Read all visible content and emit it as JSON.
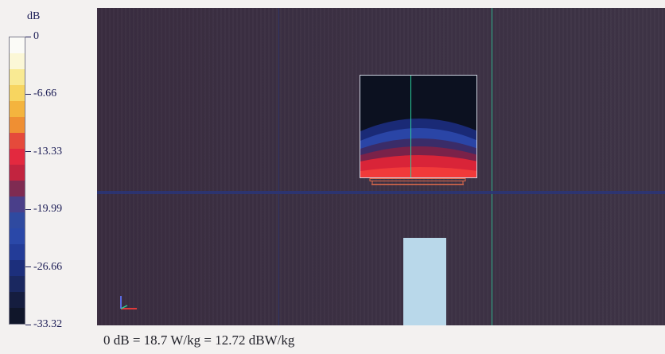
{
  "legend": {
    "unit": "dB",
    "ticks": [
      {
        "label": "0",
        "value": 0
      },
      {
        "label": "-6.66",
        "value": -6.66
      },
      {
        "label": "-13.33",
        "value": -13.33
      },
      {
        "label": "-19.99",
        "value": -19.99
      },
      {
        "label": "-26.66",
        "value": -26.66
      },
      {
        "label": "-33.32",
        "value": -33.32
      }
    ],
    "min": -33.32,
    "max": 0,
    "colors": [
      "#fbfbf7",
      "#fbf7d6",
      "#f9ea93",
      "#f7d560",
      "#f4b43e",
      "#ef8f33",
      "#e54a3b",
      "#e3293f",
      "#c2243f",
      "#7f2b52",
      "#4a3f8a",
      "#2f4aa0",
      "#2a48a8",
      "#233c98",
      "#1c2f7c",
      "#1a2860",
      "#151d3f",
      "#10162a"
    ]
  },
  "footer": {
    "text": "0 dB = 18.7 W/kg = 12.72 dBW/kg"
  },
  "plot": {
    "background": "#3c3144",
    "grid_colors": [
      "#2f3a78",
      "#2bcf9a"
    ],
    "feed_color": "#b9d8ea"
  }
}
